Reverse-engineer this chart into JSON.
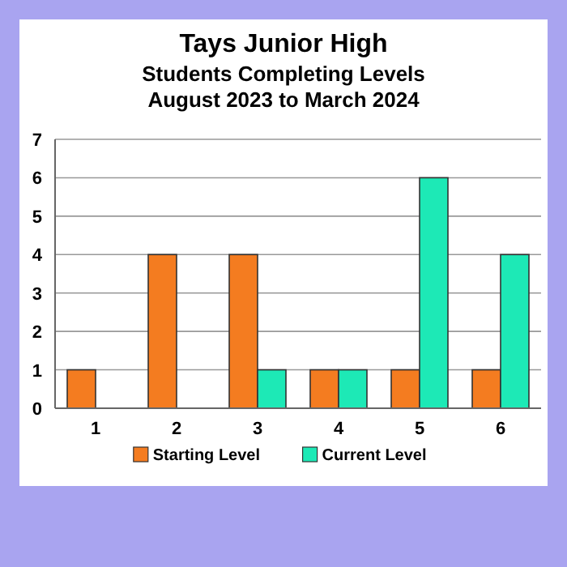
{
  "chart_data": {
    "type": "bar",
    "title": "Tays Junior High",
    "subtitle": "Students Completing Levels\nAugust 2023 to March 2024",
    "categories": [
      "1",
      "2",
      "3",
      "4",
      "5",
      "6"
    ],
    "series": [
      {
        "name": "Starting Level",
        "color": "#f47c20",
        "values": [
          1,
          4,
          4,
          1,
          1,
          1
        ]
      },
      {
        "name": "Current Level",
        "color": "#1de9b6",
        "values": [
          0,
          0,
          1,
          1,
          6,
          4
        ]
      }
    ],
    "ylim": [
      0,
      7
    ],
    "yticks": [
      0,
      1,
      2,
      3,
      4,
      5,
      6,
      7
    ],
    "grid": "y",
    "legend": "bottom"
  }
}
